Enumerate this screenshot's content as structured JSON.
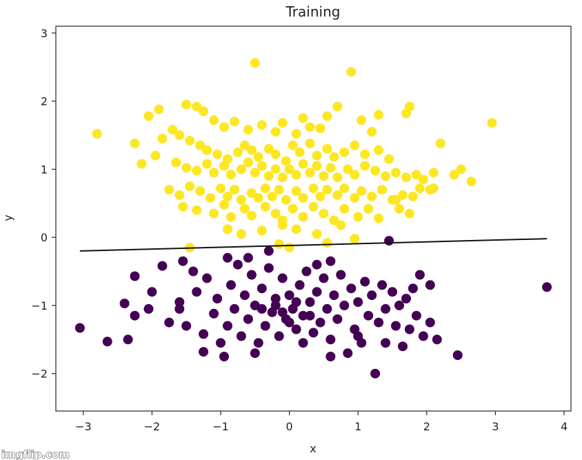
{
  "watermark": "imgflip.com",
  "chart_data": {
    "type": "scatter",
    "title": "Training",
    "xlabel": "x",
    "ylabel": "y",
    "xlim": [
      -3.4,
      4.1
    ],
    "ylim": [
      -2.55,
      3.1
    ],
    "xticks": [
      -3,
      -2,
      -1,
      0,
      1,
      2,
      3,
      4
    ],
    "yticks": [
      -2,
      -1,
      0,
      1,
      2,
      3
    ],
    "xtick_labels": [
      "−3",
      "−2",
      "−1",
      "0",
      "1",
      "2",
      "3",
      "4"
    ],
    "ytick_labels": [
      "−2",
      "−1",
      "0",
      "1",
      "2",
      "3"
    ],
    "grid": false,
    "colors": {
      "class_1": "#fde725",
      "class_0": "#440154",
      "boundary": "#111111"
    },
    "decision_boundary": {
      "x": [
        -3.05,
        3.75
      ],
      "y": [
        -0.2,
        -0.02
      ]
    },
    "series": [
      {
        "class": 1,
        "points": [
          [
            -2.8,
            1.52
          ],
          [
            -0.5,
            2.56
          ],
          [
            0.9,
            2.43
          ],
          [
            -1.5,
            1.95
          ],
          [
            -1.35,
            1.92
          ],
          [
            -1.9,
            1.88
          ],
          [
            -2.05,
            1.78
          ],
          [
            -1.25,
            1.85
          ],
          [
            -1.1,
            1.72
          ],
          [
            -0.95,
            1.62
          ],
          [
            -0.8,
            1.7
          ],
          [
            -0.6,
            1.58
          ],
          [
            -0.4,
            1.65
          ],
          [
            -0.2,
            1.55
          ],
          [
            -0.1,
            1.68
          ],
          [
            0.1,
            1.52
          ],
          [
            0.2,
            1.75
          ],
          [
            0.3,
            1.62
          ],
          [
            0.45,
            1.6
          ],
          [
            0.55,
            1.78
          ],
          [
            0.7,
            1.92
          ],
          [
            1.05,
            1.72
          ],
          [
            1.3,
            1.8
          ],
          [
            1.75,
            1.92
          ],
          [
            1.7,
            1.82
          ],
          [
            1.2,
            1.55
          ],
          [
            -2.25,
            1.38
          ],
          [
            -1.85,
            1.45
          ],
          [
            -1.7,
            1.58
          ],
          [
            -1.6,
            1.5
          ],
          [
            -1.45,
            1.42
          ],
          [
            -1.3,
            1.35
          ],
          [
            -1.2,
            1.28
          ],
          [
            -1.05,
            1.22
          ],
          [
            -0.9,
            1.15
          ],
          [
            -0.75,
            1.25
          ],
          [
            -0.65,
            1.35
          ],
          [
            -0.55,
            1.28
          ],
          [
            -0.45,
            1.18
          ],
          [
            -0.3,
            1.3
          ],
          [
            -0.2,
            1.22
          ],
          [
            -0.05,
            1.12
          ],
          [
            0.05,
            1.35
          ],
          [
            0.15,
            1.25
          ],
          [
            0.3,
            1.38
          ],
          [
            0.4,
            1.2
          ],
          [
            0.55,
            1.3
          ],
          [
            0.65,
            1.18
          ],
          [
            0.8,
            1.25
          ],
          [
            0.95,
            1.35
          ],
          [
            1.1,
            1.22
          ],
          [
            1.3,
            1.28
          ],
          [
            1.45,
            1.15
          ],
          [
            2.2,
            1.38
          ],
          [
            2.95,
            1.68
          ],
          [
            -2.15,
            1.08
          ],
          [
            -1.95,
            1.2
          ],
          [
            -1.65,
            1.1
          ],
          [
            -1.5,
            1.02
          ],
          [
            -1.35,
            0.98
          ],
          [
            -1.2,
            1.08
          ],
          [
            -1.1,
            0.95
          ],
          [
            -0.95,
            1.05
          ],
          [
            -0.85,
            0.92
          ],
          [
            -0.7,
            1.0
          ],
          [
            -0.6,
            1.1
          ],
          [
            -0.5,
            0.95
          ],
          [
            -0.4,
            1.05
          ],
          [
            -0.3,
            0.9
          ],
          [
            -0.2,
            1.0
          ],
          [
            -0.1,
            0.88
          ],
          [
            0.0,
            1.0
          ],
          [
            0.1,
            0.92
          ],
          [
            0.2,
            1.08
          ],
          [
            0.3,
            0.95
          ],
          [
            0.4,
            1.05
          ],
          [
            0.5,
            0.9
          ],
          [
            0.6,
            1.02
          ],
          [
            0.7,
            0.88
          ],
          [
            0.85,
            1.0
          ],
          [
            0.95,
            0.92
          ],
          [
            1.1,
            1.05
          ],
          [
            1.25,
            0.98
          ],
          [
            1.4,
            0.9
          ],
          [
            1.55,
            0.95
          ],
          [
            1.7,
            0.88
          ],
          [
            1.85,
            0.92
          ],
          [
            1.95,
            0.85
          ],
          [
            2.1,
            0.72
          ],
          [
            2.4,
            0.92
          ],
          [
            2.5,
            1.0
          ],
          [
            2.65,
            0.82
          ],
          [
            -1.75,
            0.7
          ],
          [
            -1.6,
            0.62
          ],
          [
            -1.45,
            0.75
          ],
          [
            -1.3,
            0.68
          ],
          [
            -1.15,
            0.58
          ],
          [
            -1.0,
            0.72
          ],
          [
            -0.9,
            0.6
          ],
          [
            -0.8,
            0.7
          ],
          [
            -0.7,
            0.55
          ],
          [
            -0.55,
            0.65
          ],
          [
            -0.45,
            0.58
          ],
          [
            -0.35,
            0.72
          ],
          [
            -0.25,
            0.6
          ],
          [
            -0.15,
            0.7
          ],
          [
            -0.05,
            0.55
          ],
          [
            0.1,
            0.68
          ],
          [
            0.2,
            0.58
          ],
          [
            0.35,
            0.72
          ],
          [
            0.45,
            0.6
          ],
          [
            0.55,
            0.7
          ],
          [
            0.7,
            0.62
          ],
          [
            0.8,
            0.72
          ],
          [
            0.95,
            0.58
          ],
          [
            1.05,
            0.68
          ],
          [
            1.2,
            0.6
          ],
          [
            1.35,
            0.7
          ],
          [
            1.5,
            0.55
          ],
          [
            1.65,
            0.62
          ],
          [
            1.9,
            0.72
          ],
          [
            2.05,
            0.7
          ],
          [
            -1.55,
            0.45
          ],
          [
            -1.35,
            0.4
          ],
          [
            -1.1,
            0.35
          ],
          [
            -0.95,
            0.48
          ],
          [
            -0.85,
            0.3
          ],
          [
            -0.65,
            0.42
          ],
          [
            -0.55,
            0.32
          ],
          [
            -0.35,
            0.45
          ],
          [
            -0.2,
            0.35
          ],
          [
            -0.1,
            0.25
          ],
          [
            0.05,
            0.42
          ],
          [
            0.2,
            0.3
          ],
          [
            0.35,
            0.45
          ],
          [
            0.5,
            0.35
          ],
          [
            0.65,
            0.25
          ],
          [
            0.8,
            0.42
          ],
          [
            1.0,
            0.3
          ],
          [
            1.15,
            0.42
          ],
          [
            1.3,
            0.28
          ],
          [
            1.6,
            0.42
          ],
          [
            1.75,
            0.35
          ],
          [
            -0.9,
            0.12
          ],
          [
            -0.7,
            0.05
          ],
          [
            -0.4,
            0.1
          ],
          [
            -0.1,
            0.18
          ],
          [
            0.1,
            0.12
          ],
          [
            0.4,
            0.05
          ],
          [
            0.75,
            0.18
          ],
          [
            0.95,
            -0.02
          ],
          [
            -1.45,
            -0.15
          ],
          [
            -0.15,
            -0.1
          ],
          [
            0.0,
            -0.15
          ],
          [
            0.55,
            -0.08
          ],
          [
            1.55,
            0.55
          ],
          [
            2.1,
            0.95
          ],
          [
            1.8,
            0.6
          ]
        ]
      },
      {
        "class": 0,
        "points": [
          [
            -3.05,
            -1.33
          ],
          [
            -2.65,
            -1.53
          ],
          [
            -2.35,
            -1.5
          ],
          [
            -2.4,
            -0.97
          ],
          [
            -2.25,
            -1.15
          ],
          [
            -2.25,
            -0.57
          ],
          [
            -2.05,
            -1.05
          ],
          [
            -2.0,
            -0.8
          ],
          [
            -1.85,
            -0.42
          ],
          [
            -1.75,
            -1.25
          ],
          [
            -1.6,
            -1.05
          ],
          [
            -1.6,
            -0.95
          ],
          [
            -1.55,
            -0.35
          ],
          [
            -1.5,
            -1.3
          ],
          [
            -1.4,
            -0.5
          ],
          [
            -1.35,
            -0.8
          ],
          [
            -1.25,
            -1.42
          ],
          [
            -1.2,
            -0.6
          ],
          [
            -1.1,
            -1.12
          ],
          [
            -1.25,
            -1.68
          ],
          [
            -1.05,
            -0.9
          ],
          [
            -0.95,
            -1.75
          ],
          [
            -0.9,
            -1.3
          ],
          [
            -0.85,
            -0.7
          ],
          [
            -0.8,
            -1.05
          ],
          [
            -0.75,
            -0.4
          ],
          [
            -0.7,
            -1.45
          ],
          [
            -0.65,
            -0.85
          ],
          [
            -0.6,
            -1.2
          ],
          [
            -0.55,
            -0.55
          ],
          [
            -0.5,
            -1.0
          ],
          [
            -0.45,
            -1.55
          ],
          [
            -0.4,
            -0.75
          ],
          [
            -0.35,
            -1.3
          ],
          [
            -0.3,
            -0.45
          ],
          [
            -0.25,
            -1.1
          ],
          [
            -0.2,
            -0.9
          ],
          [
            -0.15,
            -1.45
          ],
          [
            -0.1,
            -0.6
          ],
          [
            -0.05,
            -1.2
          ],
          [
            0.0,
            -0.85
          ],
          [
            0.05,
            -1.05
          ],
          [
            0.1,
            -1.35
          ],
          [
            0.15,
            -0.7
          ],
          [
            0.2,
            -1.15
          ],
          [
            0.25,
            -0.5
          ],
          [
            0.3,
            -0.95
          ],
          [
            0.35,
            -1.4
          ],
          [
            0.4,
            -0.8
          ],
          [
            0.45,
            -1.25
          ],
          [
            0.5,
            -0.6
          ],
          [
            0.55,
            -1.05
          ],
          [
            0.6,
            -1.5
          ],
          [
            0.65,
            -0.85
          ],
          [
            0.7,
            -1.2
          ],
          [
            0.75,
            -0.55
          ],
          [
            0.8,
            -1.0
          ],
          [
            0.85,
            -1.7
          ],
          [
            0.9,
            -0.75
          ],
          [
            0.95,
            -1.35
          ],
          [
            1.0,
            -0.95
          ],
          [
            1.05,
            -1.55
          ],
          [
            1.1,
            -0.65
          ],
          [
            1.15,
            -1.15
          ],
          [
            1.2,
            -0.85
          ],
          [
            1.25,
            -2.0
          ],
          [
            1.3,
            -1.25
          ],
          [
            1.35,
            -0.7
          ],
          [
            1.4,
            -1.05
          ],
          [
            1.45,
            -0.05
          ],
          [
            1.5,
            -0.8
          ],
          [
            1.55,
            -1.3
          ],
          [
            1.6,
            -1.0
          ],
          [
            1.65,
            -1.6
          ],
          [
            1.7,
            -0.9
          ],
          [
            1.75,
            -1.35
          ],
          [
            1.8,
            -0.75
          ],
          [
            1.85,
            -1.15
          ],
          [
            1.9,
            -0.55
          ],
          [
            1.95,
            -1.45
          ],
          [
            2.05,
            -0.7
          ],
          [
            2.05,
            -1.25
          ],
          [
            2.15,
            -1.5
          ],
          [
            2.45,
            -1.73
          ],
          [
            3.75,
            -0.73
          ],
          [
            -0.9,
            -0.3
          ],
          [
            -0.6,
            -0.3
          ],
          [
            -0.3,
            -0.2
          ],
          [
            0.4,
            -0.4
          ],
          [
            0.6,
            -0.35
          ],
          [
            -1.0,
            -1.55
          ],
          [
            -0.5,
            -1.7
          ],
          [
            0.2,
            -1.55
          ],
          [
            0.6,
            -1.75
          ],
          [
            1.0,
            -1.45
          ],
          [
            1.4,
            -1.55
          ],
          [
            -0.2,
            -1.0
          ],
          [
            -0.1,
            -1.1
          ],
          [
            0.1,
            -0.95
          ],
          [
            0.3,
            -1.15
          ],
          [
            -0.4,
            -1.05
          ],
          [
            0.0,
            -1.25
          ]
        ]
      }
    ]
  }
}
